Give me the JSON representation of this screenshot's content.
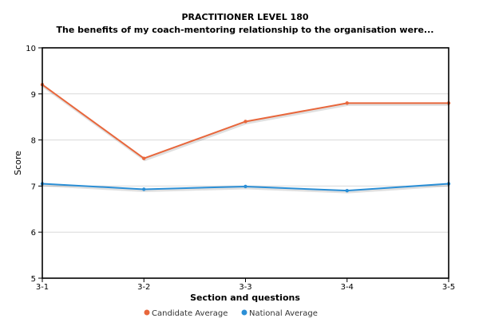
{
  "chart_data": {
    "type": "line",
    "title": "PRACTITIONER LEVEL 180",
    "subtitle": "The benefits of my coach-mentoring relationship to the organisation were...",
    "xlabel": "Section and questions",
    "ylabel": "Score",
    "categories": [
      "3-1",
      "3-2",
      "3-3",
      "3-4",
      "3-5"
    ],
    "ylim": [
      5,
      10
    ],
    "yticks": [
      5,
      6,
      7,
      8,
      9,
      10
    ],
    "grid": true,
    "legend_position": "bottom-center",
    "series": [
      {
        "name": "Candidate Average",
        "color": "#e8673c",
        "values": [
          9.2,
          7.6,
          8.4,
          8.8,
          8.8
        ]
      },
      {
        "name": "National Average",
        "color": "#2b8fd6",
        "values": [
          7.05,
          6.93,
          6.99,
          6.9,
          7.05
        ]
      }
    ]
  }
}
